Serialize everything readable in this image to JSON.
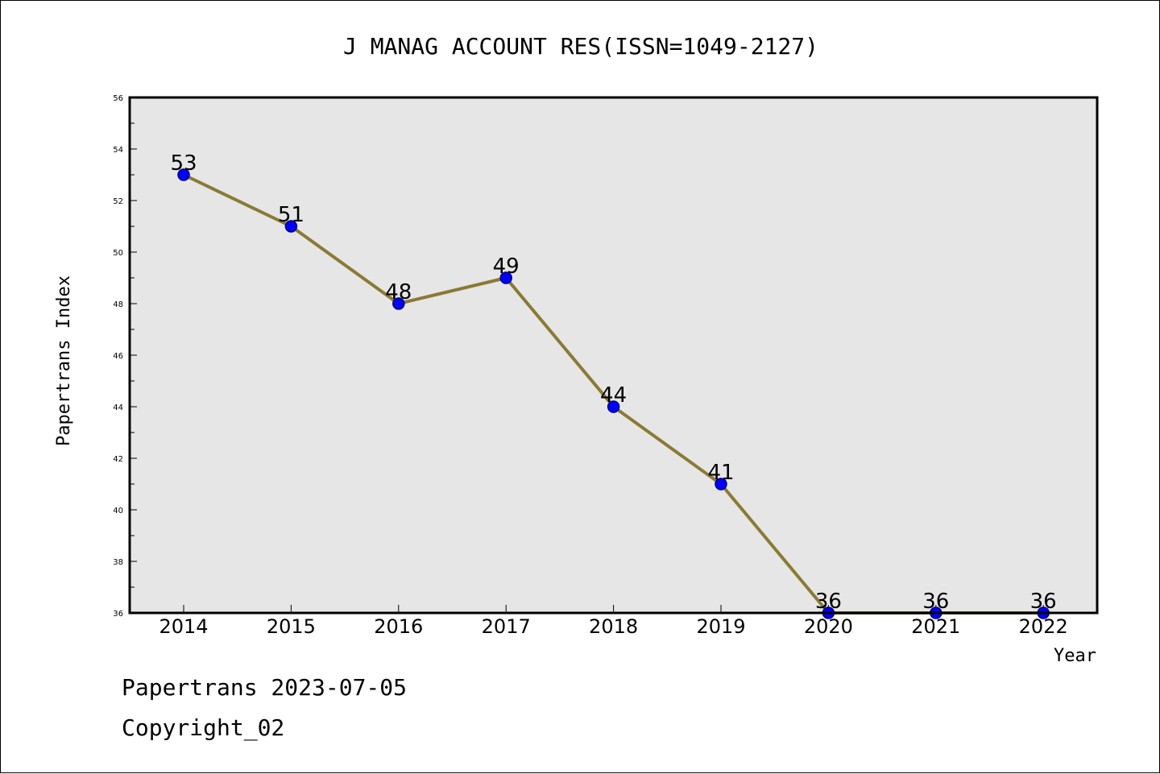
{
  "chart_data": {
    "type": "line",
    "title": "J MANAG ACCOUNT RES(ISSN=1049-2127)",
    "xlabel": "Year",
    "ylabel": "Papertrans Index",
    "categories": [
      "2014",
      "2015",
      "2016",
      "2017",
      "2018",
      "2019",
      "2020",
      "2021",
      "2022"
    ],
    "series": [
      {
        "values": [
          53,
          51,
          48,
          49,
          44,
          41,
          36,
          36,
          36
        ]
      }
    ],
    "ylim": [
      36,
      56
    ],
    "yticks": [
      "36",
      "38",
      "40",
      "42",
      "44",
      "46",
      "48",
      "50",
      "52",
      "54",
      "56"
    ],
    "data_labels": [
      "53",
      "51",
      "48",
      "49",
      "44",
      "41",
      "36",
      "36",
      "36"
    ],
    "grid": false,
    "legend": "none",
    "colors": {
      "plot_background": "#e6e6e6",
      "line": "#8b7a35",
      "marker_fill": "#0000ff",
      "marker_edge": "#000080"
    }
  },
  "footer": {
    "line1": "Papertrans 2023-07-05",
    "line2": "Copyright_02"
  }
}
